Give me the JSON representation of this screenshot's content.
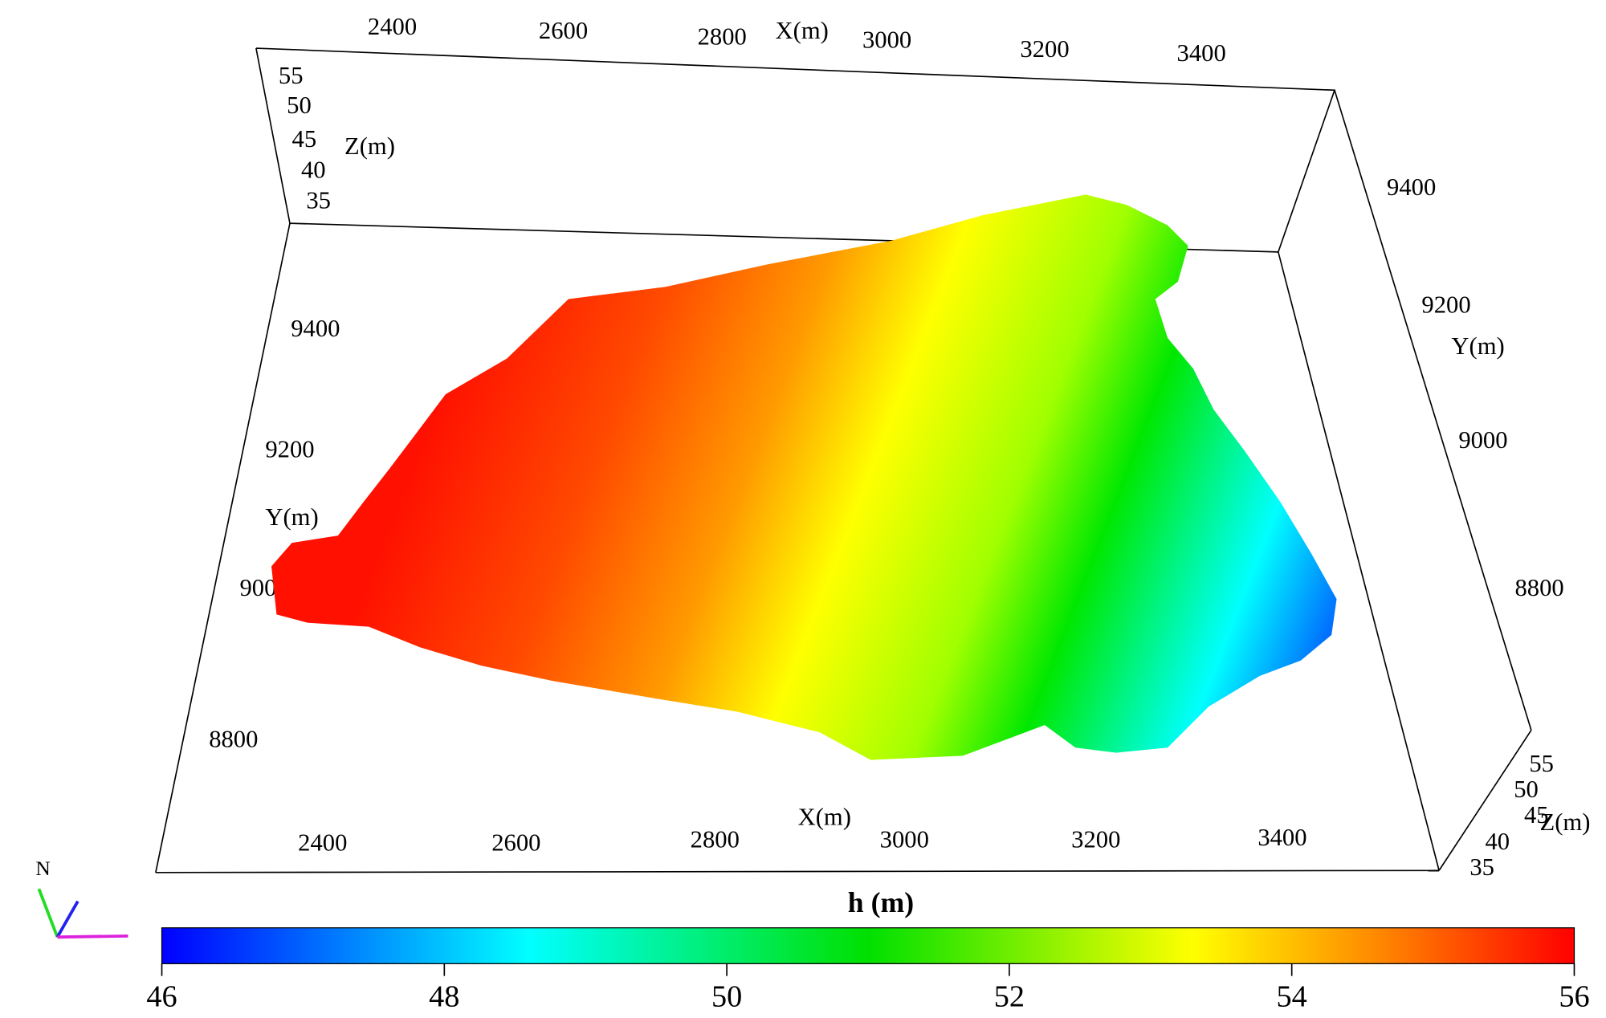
{
  "chart_data": {
    "type": "surface3d",
    "x_label": "X(m)",
    "y_label": "Y(m)",
    "z_label": "Z(m)",
    "xticks": [
      2400,
      2600,
      2800,
      3000,
      3200,
      3400
    ],
    "yticks": [
      8800,
      9000,
      9200,
      9400
    ],
    "zticks": [
      35,
      40,
      45,
      50,
      55
    ],
    "colorbar": {
      "label": "h (m)",
      "lim": [
        46,
        56
      ],
      "ticks": [
        46,
        48,
        50,
        52,
        54,
        56
      ]
    },
    "north_label": "N"
  }
}
